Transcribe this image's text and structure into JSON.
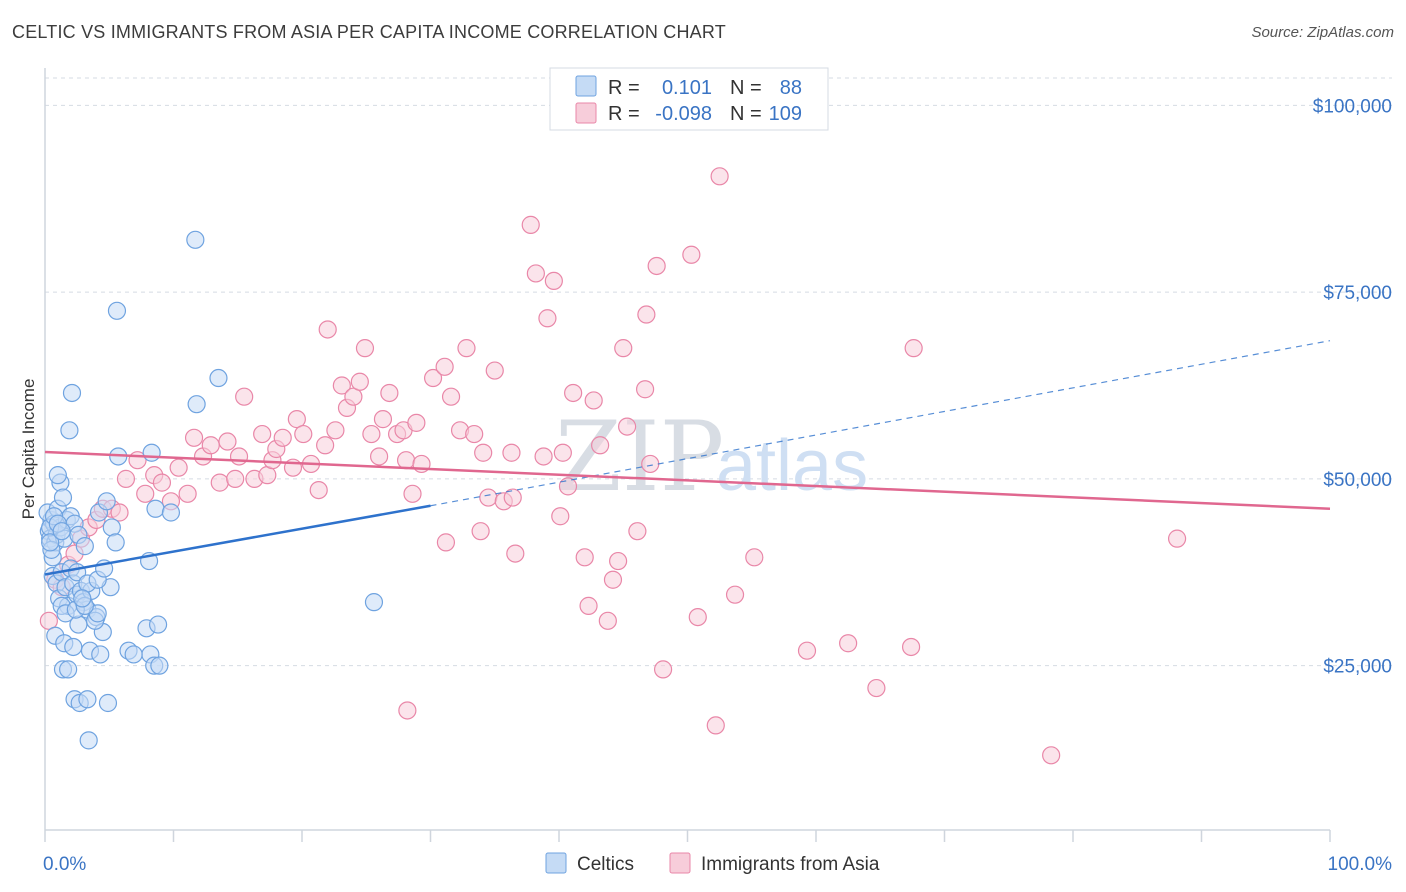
{
  "header": {
    "title": "CELTIC VS IMMIGRANTS FROM ASIA PER CAPITA INCOME CORRELATION CHART",
    "source": "Source: ZipAtlas.com"
  },
  "stats": {
    "row1": {
      "r_label": "R =",
      "r_value": "0.101",
      "n_label": "N =",
      "n_value": "88"
    },
    "row2": {
      "r_label": "R =",
      "r_value": "-0.098",
      "n_label": "N =",
      "n_value": "109"
    }
  },
  "watermark": {
    "zip": "ZIP",
    "atlas": "atlas"
  },
  "colors": {
    "celtic": "#6fa3e0",
    "celtic_fill": "#c5dbf5",
    "asia": "#e987a8",
    "asia_fill": "#f7cdda",
    "celtic_line": "#2e72cc",
    "asia_line": "#e0678f",
    "tick_text": "#3a74c4",
    "grid": "#d5dbe3"
  },
  "chart_data": {
    "type": "scatter",
    "title": "CELTIC VS IMMIGRANTS FROM ASIA PER CAPITA INCOME CORRELATION CHART",
    "xlabel": "",
    "ylabel": "Per Capita Income",
    "xlim": [
      0,
      100
    ],
    "ylim": [
      3000,
      105000
    ],
    "x_tick_labels": [
      "0.0%",
      "100.0%"
    ],
    "y_ticks": [
      25000,
      50000,
      75000,
      100000
    ],
    "y_tick_labels": [
      "$25,000",
      "$50,000",
      "$75,000",
      "$100,000"
    ],
    "grid": true,
    "legend_position": "bottom-center",
    "series": [
      {
        "name": "Celtics",
        "r": 0.101,
        "n": 88,
        "trend": {
          "x": [
            0,
            30
          ],
          "y": [
            37200,
            46400
          ],
          "dashed_extension_to": [
            100,
            68500
          ]
        },
        "points": [
          [
            0.3,
            43000
          ],
          [
            0.5,
            44500
          ],
          [
            0.4,
            42000
          ],
          [
            0.6,
            39500
          ],
          [
            0.8,
            41500
          ],
          [
            0.2,
            45500
          ],
          [
            0.7,
            44000
          ],
          [
            1.0,
            46000
          ],
          [
            0.9,
            42500
          ],
          [
            1.2,
            43500
          ],
          [
            1.5,
            42000
          ],
          [
            0.6,
            37000
          ],
          [
            0.5,
            40500
          ],
          [
            0.9,
            36000
          ],
          [
            1.1,
            34000
          ],
          [
            1.3,
            37500
          ],
          [
            1.6,
            35500
          ],
          [
            1.8,
            33000
          ],
          [
            2.0,
            38000
          ],
          [
            2.2,
            36000
          ],
          [
            2.5,
            34500
          ],
          [
            2.8,
            35000
          ],
          [
            3.0,
            33500
          ],
          [
            3.3,
            32500
          ],
          [
            3.6,
            35000
          ],
          [
            4.0,
            31500
          ],
          [
            4.5,
            29500
          ],
          [
            5.1,
            35500
          ],
          [
            1.2,
            49500
          ],
          [
            1.0,
            50500
          ],
          [
            1.4,
            47500
          ],
          [
            1.7,
            44500
          ],
          [
            2.0,
            45000
          ],
          [
            2.3,
            44000
          ],
          [
            2.6,
            42500
          ],
          [
            3.1,
            41000
          ],
          [
            4.2,
            45500
          ],
          [
            4.8,
            47000
          ],
          [
            5.2,
            43500
          ],
          [
            5.5,
            41500
          ],
          [
            5.7,
            53000
          ],
          [
            8.3,
            53500
          ],
          [
            8.6,
            46000
          ],
          [
            9.8,
            45500
          ],
          [
            1.9,
            56500
          ],
          [
            2.1,
            61500
          ],
          [
            5.6,
            72500
          ],
          [
            11.8,
            60000
          ],
          [
            13.5,
            63500
          ],
          [
            11.7,
            82000
          ],
          [
            8.1,
            39000
          ],
          [
            0.8,
            29000
          ],
          [
            1.5,
            28000
          ],
          [
            2.2,
            27500
          ],
          [
            3.5,
            27000
          ],
          [
            4.3,
            26500
          ],
          [
            6.5,
            27000
          ],
          [
            8.2,
            26500
          ],
          [
            8.5,
            25000
          ],
          [
            8.9,
            25000
          ],
          [
            1.4,
            24500
          ],
          [
            1.8,
            24500
          ],
          [
            2.3,
            20500
          ],
          [
            2.7,
            20000
          ],
          [
            3.3,
            20500
          ],
          [
            4.9,
            20000
          ],
          [
            3.4,
            15000
          ],
          [
            7.9,
            30000
          ],
          [
            8.8,
            30500
          ],
          [
            2.6,
            30500
          ],
          [
            3.9,
            31000
          ],
          [
            4.1,
            32000
          ],
          [
            1.3,
            33000
          ],
          [
            1.6,
            32000
          ],
          [
            2.4,
            32500
          ],
          [
            3.1,
            33000
          ],
          [
            2.5,
            37500
          ],
          [
            3.3,
            36000
          ],
          [
            4.1,
            36500
          ],
          [
            6.9,
            26500
          ],
          [
            25.6,
            33500
          ],
          [
            0.4,
            43500
          ],
          [
            0.7,
            45000
          ],
          [
            0.4,
            41500
          ],
          [
            1.0,
            44000
          ],
          [
            1.3,
            43000
          ],
          [
            4.6,
            38000
          ],
          [
            2.9,
            34000
          ]
        ]
      },
      {
        "name": "Immigrants from Asia",
        "r": -0.098,
        "n": 109,
        "trend": {
          "x": [
            0,
            100
          ],
          "y": [
            53600,
            46000
          ]
        },
        "points": [
          [
            0.3,
            31000
          ],
          [
            0.8,
            36500
          ],
          [
            1.3,
            35500
          ],
          [
            1.8,
            38500
          ],
          [
            2.3,
            40000
          ],
          [
            2.8,
            42000
          ],
          [
            3.4,
            43500
          ],
          [
            4.0,
            44500
          ],
          [
            4.5,
            46000
          ],
          [
            5.2,
            46000
          ],
          [
            5.8,
            45500
          ],
          [
            6.3,
            50000
          ],
          [
            7.2,
            52500
          ],
          [
            7.8,
            48000
          ],
          [
            8.5,
            50500
          ],
          [
            9.1,
            49500
          ],
          [
            9.8,
            47000
          ],
          [
            10.4,
            51500
          ],
          [
            11.1,
            48000
          ],
          [
            11.6,
            55500
          ],
          [
            12.3,
            53000
          ],
          [
            12.9,
            54500
          ],
          [
            13.6,
            49500
          ],
          [
            14.2,
            55000
          ],
          [
            14.8,
            50000
          ],
          [
            15.1,
            53000
          ],
          [
            15.5,
            61000
          ],
          [
            16.3,
            50000
          ],
          [
            16.9,
            56000
          ],
          [
            17.3,
            50500
          ],
          [
            17.7,
            52500
          ],
          [
            18.0,
            54000
          ],
          [
            18.5,
            55500
          ],
          [
            19.3,
            51500
          ],
          [
            19.6,
            58000
          ],
          [
            20.1,
            56000
          ],
          [
            20.7,
            52000
          ],
          [
            21.3,
            48500
          ],
          [
            21.8,
            54500
          ],
          [
            22.0,
            70000
          ],
          [
            22.6,
            56500
          ],
          [
            23.1,
            62500
          ],
          [
            23.5,
            59500
          ],
          [
            24.0,
            61000
          ],
          [
            24.5,
            63000
          ],
          [
            24.9,
            67500
          ],
          [
            25.4,
            56000
          ],
          [
            26.0,
            53000
          ],
          [
            26.3,
            58000
          ],
          [
            26.8,
            61500
          ],
          [
            27.4,
            56000
          ],
          [
            27.9,
            56500
          ],
          [
            28.1,
            52500
          ],
          [
            28.6,
            48000
          ],
          [
            28.9,
            57500
          ],
          [
            29.3,
            52000
          ],
          [
            30.2,
            63500
          ],
          [
            31.1,
            65000
          ],
          [
            31.6,
            61000
          ],
          [
            32.3,
            56500
          ],
          [
            32.8,
            67500
          ],
          [
            33.4,
            56000
          ],
          [
            33.9,
            43000
          ],
          [
            34.5,
            47500
          ],
          [
            35.0,
            64500
          ],
          [
            35.7,
            47000
          ],
          [
            36.3,
            53500
          ],
          [
            36.6,
            40000
          ],
          [
            37.8,
            84000
          ],
          [
            38.2,
            77500
          ],
          [
            38.8,
            53000
          ],
          [
            39.1,
            71500
          ],
          [
            39.6,
            76500
          ],
          [
            40.1,
            45000
          ],
          [
            40.7,
            49000
          ],
          [
            40.3,
            53500
          ],
          [
            41.1,
            61500
          ],
          [
            42.0,
            39500
          ],
          [
            42.7,
            60500
          ],
          [
            43.2,
            54500
          ],
          [
            43.8,
            31000
          ],
          [
            44.2,
            36500
          ],
          [
            44.6,
            39000
          ],
          [
            45.0,
            67500
          ],
          [
            45.3,
            57000
          ],
          [
            46.1,
            43000
          ],
          [
            46.8,
            72000
          ],
          [
            47.1,
            52000
          ],
          [
            47.6,
            78500
          ],
          [
            48.1,
            24500
          ],
          [
            50.3,
            80000
          ],
          [
            50.8,
            31500
          ],
          [
            52.5,
            90500
          ],
          [
            52.2,
            17000
          ],
          [
            53.7,
            34500
          ],
          [
            55.2,
            39500
          ],
          [
            59.3,
            27000
          ],
          [
            62.5,
            28000
          ],
          [
            64.7,
            22000
          ],
          [
            67.6,
            67500
          ],
          [
            67.4,
            27500
          ],
          [
            78.3,
            13000
          ],
          [
            88.1,
            42000
          ],
          [
            28.2,
            19000
          ],
          [
            31.2,
            41500
          ],
          [
            34.1,
            53500
          ],
          [
            36.4,
            47500
          ],
          [
            42.3,
            33000
          ],
          [
            46.7,
            62000
          ]
        ]
      }
    ]
  }
}
